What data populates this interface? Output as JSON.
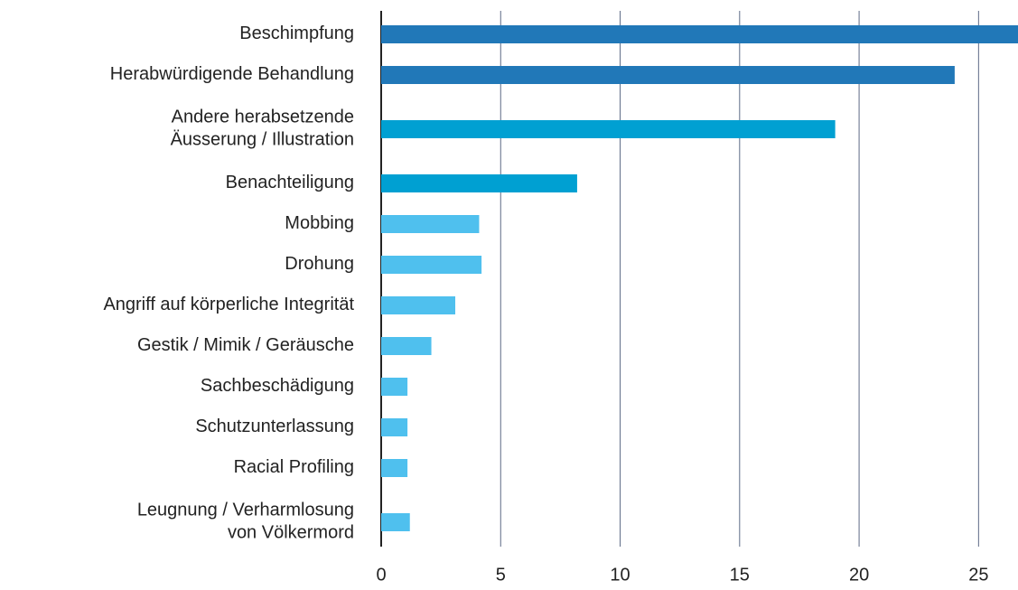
{
  "chart_data": {
    "type": "hbar",
    "categories": [
      [
        "Beschimpfung"
      ],
      [
        "Herabwürdigende Behandlung"
      ],
      [
        "Andere herabsetzende",
        "Äusserung / Illustration"
      ],
      [
        "Benachteiligung"
      ],
      [
        "Mobbing"
      ],
      [
        "Drohung"
      ],
      [
        "Angriff auf körperliche Integrität"
      ],
      [
        "Gestik / Mimik / Geräusche"
      ],
      [
        "Sachbeschädigung"
      ],
      [
        "Schutzunterlassung"
      ],
      [
        "Racial Profiling"
      ],
      [
        "Leugnung / Verharmlosung",
        "von Völkermord"
      ]
    ],
    "values": [
      27,
      24,
      19,
      8.2,
      4.1,
      4.2,
      3.1,
      2.1,
      1.1,
      1.1,
      1.1,
      1.2
    ],
    "colors": [
      "#2178b8",
      "#2178b8",
      "#00a0d2",
      "#00a0d2",
      "#4fc0ee",
      "#4fc0ee",
      "#4fc0ee",
      "#4fc0ee",
      "#4fc0ee",
      "#4fc0ee",
      "#4fc0ee",
      "#4fc0ee"
    ],
    "xlim": [
      0,
      26.65
    ],
    "xticks": [
      0,
      5,
      10,
      15,
      20,
      25
    ],
    "grid": true
  }
}
